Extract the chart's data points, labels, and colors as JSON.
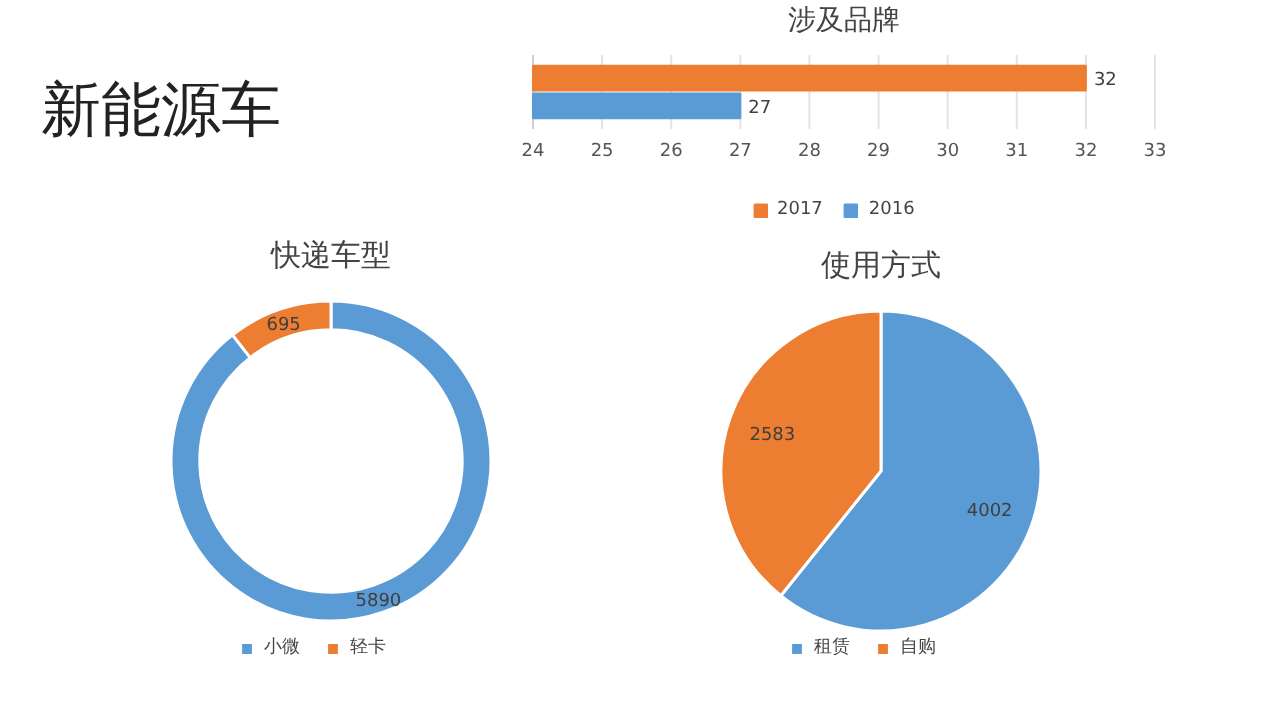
{
  "chart_data": [
    {
      "type": "other",
      "title": "新能源车"
    },
    {
      "type": "bar",
      "title": "涉及品牌",
      "orientation": "horizontal",
      "categories": [
        null
      ],
      "series": [
        {
          "name": "2017",
          "color": "#ed7d31",
          "values": [
            32
          ]
        },
        {
          "name": "2016",
          "color": "#5b9bd5",
          "values": [
            27
          ]
        }
      ],
      "xlim": [
        24,
        33
      ],
      "xticks": [
        24,
        25,
        26,
        27,
        28,
        29,
        30,
        31,
        32,
        33
      ],
      "grid": "x",
      "legend": "bottom",
      "data_labels": true
    },
    {
      "type": "donut",
      "title": "快递车型",
      "categories": [
        "小微",
        "轻卡"
      ],
      "values": [
        5890,
        695
      ],
      "colors": [
        "#5b9bd5",
        "#ed7d31"
      ],
      "legend": "bottom",
      "data_labels": true
    },
    {
      "type": "pie",
      "title": "使用方式",
      "categories": [
        "租赁",
        "自购"
      ],
      "values": [
        4002,
        2583
      ],
      "colors": [
        "#5b9bd5",
        "#ed7d31"
      ],
      "legend": "bottom",
      "data_labels": true
    }
  ]
}
